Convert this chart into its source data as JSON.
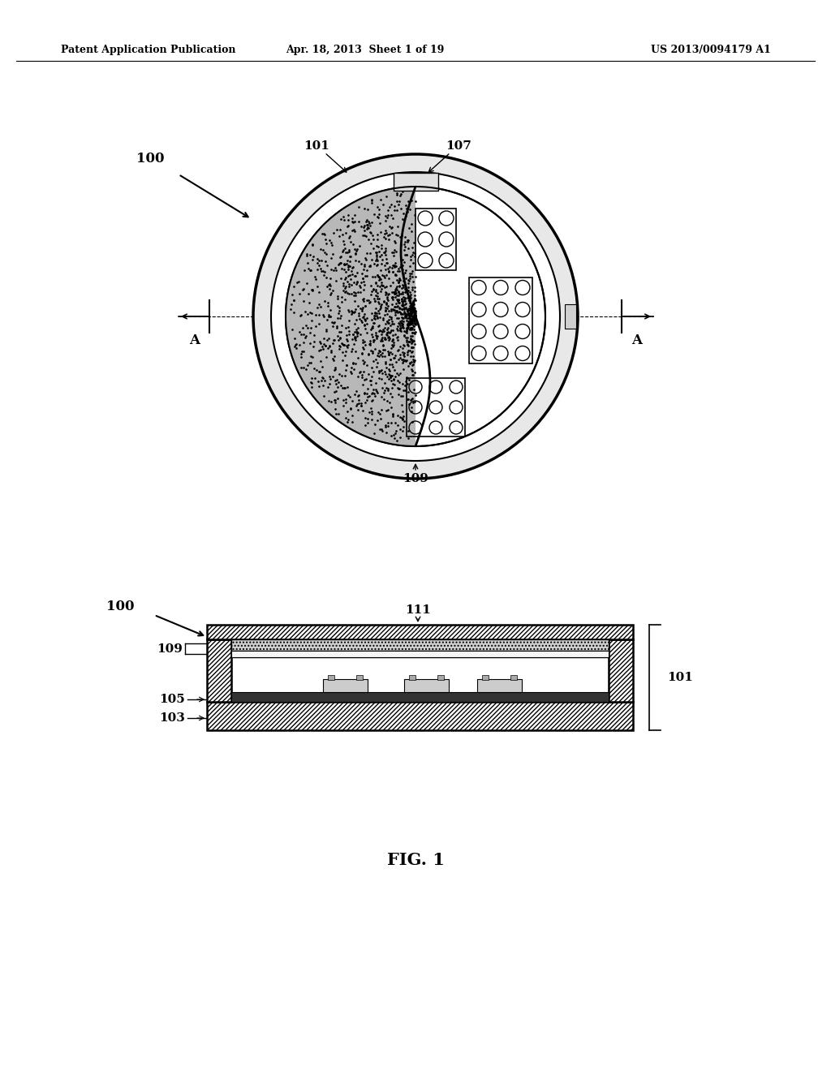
{
  "bg_color": "#ffffff",
  "header_left": "Patent Application Publication",
  "header_mid": "Apr. 18, 2013  Sheet 1 of 19",
  "header_right": "US 2013/0094179 A1",
  "fig_label": "FIG. 1"
}
